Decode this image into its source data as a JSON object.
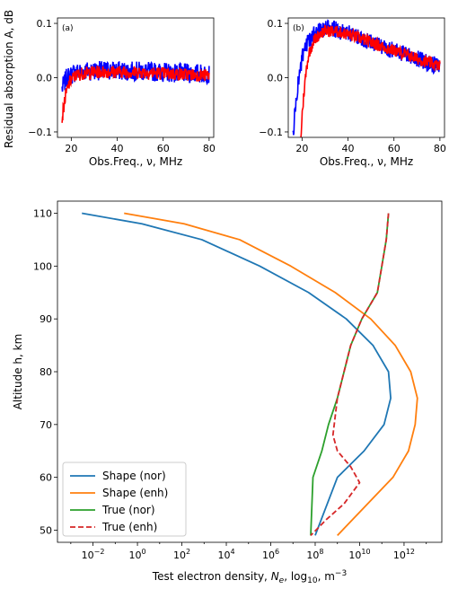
{
  "shared": {
    "ylabel": "Residual absorption A, dB"
  },
  "chart_data": [
    {
      "type": "line",
      "panel_label": "(a)",
      "xlabel": "Obs.Freq., ν, MHz",
      "xlim": [
        14,
        82
      ],
      "ylim": [
        -0.11,
        0.11
      ],
      "xticks": [
        "20",
        "40",
        "60",
        "80"
      ],
      "xtick_values": [
        20,
        40,
        60,
        80
      ],
      "yticks": [
        "0.1",
        "0.0",
        "−0.1"
      ],
      "ytick_values": [
        0.1,
        0.0,
        -0.1
      ],
      "colors": {
        "blue": "#0000ff",
        "red": "#ff0000"
      },
      "series": [
        {
          "color": "blue",
          "x": [
            16,
            17,
            18,
            20,
            22,
            25,
            30,
            35,
            40,
            45,
            50,
            55,
            60,
            65,
            70,
            75,
            80
          ],
          "y": [
            -0.02,
            -0.01,
            0.0,
            0.005,
            0.01,
            0.012,
            0.013,
            0.013,
            0.013,
            0.012,
            0.012,
            0.011,
            0.01,
            0.009,
            0.008,
            0.008,
            0.007
          ],
          "noise": 0.018
        },
        {
          "color": "red",
          "x": [
            16,
            17,
            18,
            19,
            20,
            22,
            25,
            30,
            35,
            40,
            45,
            50,
            55,
            60,
            65,
            70,
            75,
            80
          ],
          "y": [
            -0.075,
            -0.045,
            -0.025,
            -0.012,
            -0.003,
            0.004,
            0.008,
            0.01,
            0.011,
            0.011,
            0.01,
            0.01,
            0.009,
            0.008,
            0.007,
            0.006,
            0.005,
            0.004
          ],
          "noise": 0.012
        }
      ]
    },
    {
      "type": "line",
      "panel_label": "(b)",
      "xlabel": "Obs.Freq., ν, MHz",
      "xlim": [
        14,
        82
      ],
      "ylim": [
        -0.11,
        0.11
      ],
      "xticks": [
        "20",
        "40",
        "60",
        "80"
      ],
      "xtick_values": [
        20,
        40,
        60,
        80
      ],
      "yticks": [
        "0.1",
        "0.0",
        "−0.1"
      ],
      "ytick_values": [
        0.1,
        0.0,
        -0.1
      ],
      "colors": {
        "blue": "#0000ff",
        "red": "#ff0000"
      },
      "series": [
        {
          "color": "blue",
          "x": [
            16,
            17,
            18,
            19,
            20,
            22,
            25,
            28,
            30,
            35,
            40,
            45,
            50,
            55,
            60,
            65,
            70,
            75,
            80
          ],
          "y": [
            -0.11,
            -0.06,
            -0.02,
            0.01,
            0.035,
            0.06,
            0.08,
            0.088,
            0.09,
            0.088,
            0.082,
            0.074,
            0.065,
            0.058,
            0.05,
            0.043,
            0.035,
            0.027,
            0.02
          ],
          "noise": 0.016
        },
        {
          "color": "red",
          "x": [
            19.5,
            20,
            21,
            22,
            23,
            25,
            28,
            30,
            35,
            40,
            45,
            50,
            55,
            60,
            65,
            70,
            75,
            80
          ],
          "y": [
            -0.11,
            -0.07,
            -0.02,
            0.02,
            0.045,
            0.068,
            0.082,
            0.086,
            0.085,
            0.08,
            0.073,
            0.065,
            0.057,
            0.05,
            0.043,
            0.035,
            0.028,
            0.021
          ],
          "noise": 0.011
        }
      ]
    },
    {
      "type": "line",
      "xlabel": "Test electron density, N_e, log10, m^-3",
      "xlabel_parts": [
        "Test electron density, ",
        "N",
        "e",
        ", log",
        "10",
        ", m",
        "−3"
      ],
      "ylabel": "Altitude h, km",
      "xlim_log10": [
        -3.6,
        13.7
      ],
      "ylim": [
        47.7,
        112.3
      ],
      "xtick_exponents": [
        "−2",
        "0",
        "2",
        "4",
        "6",
        "8",
        "10",
        "12"
      ],
      "xtick_values_log10": [
        -2,
        0,
        2,
        4,
        6,
        8,
        10,
        12
      ],
      "ytick_labels": [
        "50",
        "60",
        "70",
        "80",
        "90",
        "100",
        "110"
      ],
      "ytick_values": [
        50,
        60,
        70,
        80,
        90,
        100,
        110
      ],
      "legend_position": "lower-left",
      "series": [
        {
          "name": "Shape (nor)",
          "color": "#1f77b4",
          "dash": "solid",
          "log10_Ne": [
            -2.5,
            0.2,
            2.9,
            5.5,
            7.7,
            9.4,
            10.6,
            11.3,
            11.4,
            11.1,
            10.2,
            9.0,
            8.0
          ],
          "h": [
            110,
            108,
            105,
            100,
            95,
            90,
            85,
            80,
            75,
            70,
            65,
            60,
            49
          ]
        },
        {
          "name": "Shape (enh)",
          "color": "#ff7f0e",
          "dash": "solid",
          "log10_Ne": [
            -0.6,
            2.1,
            4.6,
            6.9,
            8.9,
            10.5,
            11.6,
            12.3,
            12.6,
            12.5,
            12.2,
            11.5,
            9.0
          ],
          "h": [
            110,
            108,
            105,
            100,
            95,
            90,
            85,
            80,
            75,
            70,
            65,
            60,
            49
          ]
        },
        {
          "name": "True (nor)",
          "color": "#2ca02c",
          "dash": "solid",
          "log10_Ne": [
            11.3,
            11.2,
            11.0,
            10.8,
            10.1,
            9.6,
            9.3,
            9.0,
            8.6,
            8.3,
            7.9,
            7.8
          ],
          "h": [
            110,
            105,
            100,
            95,
            90,
            85,
            80,
            75,
            70,
            65,
            60,
            49
          ]
        },
        {
          "name": "True (enh)",
          "color": "#d62728",
          "dash": "dashed",
          "log10_Ne": [
            11.3,
            11.2,
            11.0,
            10.8,
            10.1,
            9.6,
            9.3,
            9.0,
            8.8,
            9.0,
            9.6,
            10.0,
            9.3,
            8.5,
            7.8
          ],
          "h": [
            110,
            105,
            100,
            95,
            90,
            85,
            80,
            75,
            68,
            65,
            62,
            59,
            55,
            52,
            49
          ]
        }
      ]
    }
  ]
}
